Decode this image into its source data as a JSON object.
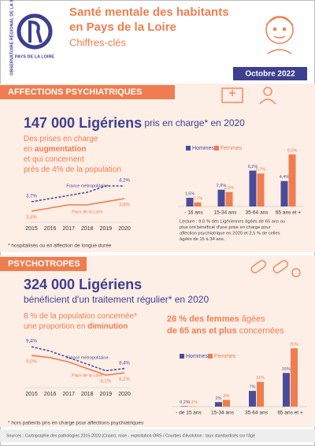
{
  "header": {
    "org_name": "OBSERVATOIRE RÉGIONAL DE LA SANTÉ",
    "org_region": "PAYS DE LA LOIRE",
    "title": [
      "Santé mentale des habitants",
      "en Pays de la Loire"
    ],
    "subtitle": "Chiffres-clés",
    "date": "Octobre 2022"
  },
  "sections": [
    {
      "heading": "AFFECTIONS PSYCHIATRIQUES",
      "key_figure": "147 000 Ligériens",
      "key_text": " pris en charge* en 2020",
      "intro": [
        [
          {
            "text": "Des prises en charge"
          }
        ],
        [
          {
            "text": "en "
          },
          {
            "text": "augmentation",
            "bold": true
          }
        ],
        [
          {
            "text": "et qui concernent"
          }
        ],
        [
          {
            "text": "près de 4% de la population"
          }
        ]
      ],
      "charts": [
        {
          "type": "line",
          "x": [
            2015,
            2016,
            2017,
            2018,
            2019,
            2020
          ],
          "series": [
            {
              "name": "France métropolitaine",
              "color": "#4b4b9b",
              "dashed": true,
              "values": [
                3.7,
                3.8,
                3.9,
                4.0,
                4.2,
                4.2
              ],
              "value_labels": [
                "3,7%",
                null,
                null,
                null,
                null,
                "4,2%"
              ]
            },
            {
              "name": "Pays de la Loire",
              "color": "#ef7d4f",
              "values": [
                3.4,
                3.5,
                3.6,
                3.6,
                3.7,
                3.8
              ],
              "value_labels": [
                "3,4%",
                null,
                null,
                null,
                null,
                "3,8%"
              ]
            }
          ]
        },
        {
          "type": "bar",
          "categories": [
            "- 16 ans",
            "15-34 ans",
            "35-64 ans",
            "65 ans et +"
          ],
          "series": [
            {
              "name": "Hommes",
              "color": "#4b4b9b",
              "values": [
                1.5,
                2.9,
                6.2,
                4.4
              ],
              "value_labels": [
                "1,5%",
                "2,9%",
                "6,2%",
                "4,4%"
              ]
            },
            {
              "name": "Femmes",
              "color": "#ef7d4f",
              "values": [
                0.7,
                2.5,
                5.7,
                9.0
              ],
              "value_labels": [
                "0,7%",
                "2,5%",
                "5,7%",
                "9,0%"
              ]
            }
          ]
        }
      ],
      "lecture": [
        "Lecture : 9,0 % des Ligériennes âgées de 65 ans ou",
        "plus ont bénéficié d'une prise en charge pour",
        "affection psychiatrique en 2020 et 2,5 % de celles",
        "âgées de 15 à 34 ans."
      ],
      "footnote": "* hospitalisés ou en affection de longue durée"
    },
    {
      "heading": "PSYCHOTROPES",
      "key_figure": "324 000 Ligériens",
      "key_text": "bénéficient d'un traitement régulier* en 2020",
      "intro": [
        [
          {
            "text": "8 % de la population concernée*"
          }
        ],
        [
          {
            "text": "une proportion en "
          },
          {
            "text": "diminution",
            "bold": true
          }
        ]
      ],
      "highlight": [
        [
          {
            "text": "26 % des ",
            "bold": true
          },
          {
            "text": "femmes",
            "bold": true
          },
          {
            "text": " âgées"
          }
        ],
        [
          {
            "text": "de 65 ans et plus",
            "bold": true
          },
          {
            "text": " concernées"
          }
        ]
      ],
      "charts": [
        {
          "type": "line",
          "x": [
            2015,
            2016,
            2017,
            2018,
            2019,
            2020
          ],
          "series": [
            {
              "name": "France métropolitaine",
              "color": "#4b4b9b",
              "dashed": true,
              "values": [
                9.4,
                9.2,
                8.9,
                8.6,
                8.3,
                8.4
              ],
              "value_labels": [
                "9,4%",
                null,
                null,
                null,
                null,
                "8,4%"
              ]
            },
            {
              "name": "Pays de la Loire",
              "color": "#ef7d4f",
              "values": [
                9.0,
                8.9,
                8.7,
                8.4,
                8.1,
                8.2
              ],
              "value_labels": [
                "9,0%",
                null,
                null,
                null,
                "8,1%",
                "8,2%"
              ]
            }
          ]
        },
        {
          "type": "bar",
          "categories": [
            "- de 15 ans",
            "15-34 ans",
            "35-64 ans",
            "65 ans et +"
          ],
          "series": [
            {
              "name": "Hommes",
              "color": "#4b4b9b",
              "values": [
                0.2,
                2,
                7,
                15
              ],
              "value_labels": [
                "0,2%",
                "2%",
                "7%",
                "15%"
              ]
            },
            {
              "name": "Femmes",
              "color": "#ef7d4f",
              "values": [
                0.1,
                3,
                11,
                26
              ],
              "value_labels": [
                "0,1%",
                "3%",
                "11%",
                "26%"
              ]
            }
          ]
        }
      ],
      "footnote": "* hors patients pris en charge pour affections psychiatriques"
    }
  ],
  "sources": "Sources : Cartographie des pathologies 2015-2020 (Cnam), mise - exploitation ORS / Courbes d'évolution : taux standardisés sur l'âge"
}
